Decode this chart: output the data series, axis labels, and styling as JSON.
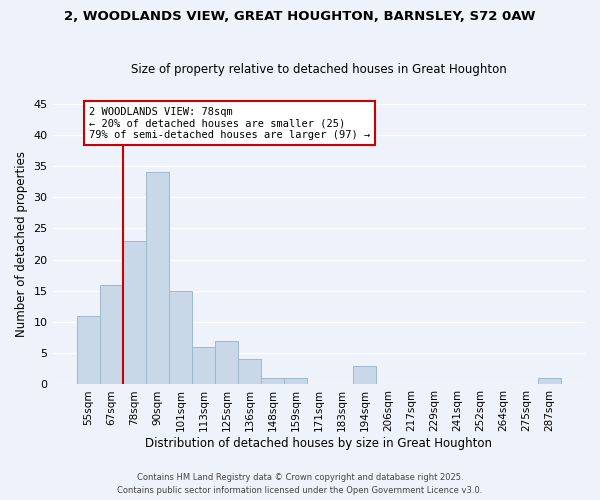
{
  "title": "2, WOODLANDS VIEW, GREAT HOUGHTON, BARNSLEY, S72 0AW",
  "subtitle": "Size of property relative to detached houses in Great Houghton",
  "xlabel": "Distribution of detached houses by size in Great Houghton",
  "ylabel": "Number of detached properties",
  "bar_color": "#c8d8e8",
  "bar_edgecolor": "#a0b8cc",
  "categories": [
    "55sqm",
    "67sqm",
    "78sqm",
    "90sqm",
    "101sqm",
    "113sqm",
    "125sqm",
    "136sqm",
    "148sqm",
    "159sqm",
    "171sqm",
    "183sqm",
    "194sqm",
    "206sqm",
    "217sqm",
    "229sqm",
    "241sqm",
    "252sqm",
    "264sqm",
    "275sqm",
    "287sqm"
  ],
  "values": [
    11,
    16,
    23,
    34,
    15,
    6,
    7,
    4,
    1,
    1,
    0,
    0,
    3,
    0,
    0,
    0,
    0,
    0,
    0,
    0,
    1
  ],
  "ylim": [
    0,
    45
  ],
  "yticks": [
    0,
    5,
    10,
    15,
    20,
    25,
    30,
    35,
    40,
    45
  ],
  "annotation_title": "2 WOODLANDS VIEW: 78sqm",
  "annotation_line1": "← 20% of detached houses are smaller (25)",
  "annotation_line2": "79% of semi-detached houses are larger (97) →",
  "annotation_box_color": "#ffffff",
  "annotation_box_edgecolor": "#cc0000",
  "redline_color": "#cc0000",
  "footer1": "Contains HM Land Registry data © Crown copyright and database right 2025.",
  "footer2": "Contains public sector information licensed under the Open Government Licence v3.0.",
  "background_color": "#eef2fa",
  "grid_color": "#ffffff"
}
